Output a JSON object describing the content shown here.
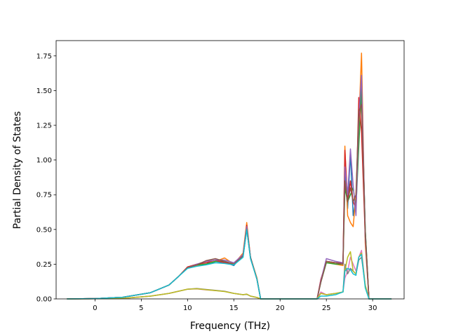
{
  "chart_data": {
    "type": "line",
    "xlabel": "Frequency (THz)",
    "ylabel": "Partial Density of States",
    "xlim": [
      -4.2,
      33.4
    ],
    "ylim": [
      0,
      1.86
    ],
    "xticks": [
      0,
      5,
      10,
      15,
      20,
      25,
      30
    ],
    "yticks": [
      0.0,
      0.25,
      0.5,
      0.75,
      1.0,
      1.25,
      1.5,
      1.75
    ],
    "ytick_labels": [
      "0.00",
      "0.25",
      "0.50",
      "0.75",
      "1.00",
      "1.25",
      "1.50",
      "1.75"
    ],
    "grid": false,
    "legend": "none",
    "series": [
      {
        "color": "#1f77b4",
        "points": [
          [
            -3,
            0
          ],
          [
            0,
            0.002
          ],
          [
            3,
            0.012
          ],
          [
            6,
            0.045
          ],
          [
            8,
            0.1
          ],
          [
            9,
            0.16
          ],
          [
            10,
            0.225
          ],
          [
            11,
            0.25
          ],
          [
            12,
            0.26
          ],
          [
            13,
            0.26
          ],
          [
            14,
            0.265
          ],
          [
            15,
            0.24
          ],
          [
            16,
            0.32
          ],
          [
            16.4,
            0.52
          ],
          [
            16.8,
            0.3
          ],
          [
            17.5,
            0.14
          ],
          [
            17.9,
            0
          ],
          [
            24,
            0
          ],
          [
            24.4,
            0.12
          ],
          [
            25,
            0.27
          ],
          [
            26,
            0.26
          ],
          [
            26.8,
            0.25
          ],
          [
            27,
            0.9
          ],
          [
            27.3,
            0.65
          ],
          [
            27.6,
            1.05
          ],
          [
            27.9,
            0.6
          ],
          [
            28.2,
            0.72
          ],
          [
            28.5,
            1.2
          ],
          [
            28.8,
            1.55
          ],
          [
            29.2,
            0.5
          ],
          [
            29.6,
            0
          ],
          [
            32,
            0
          ]
        ]
      },
      {
        "color": "#ff7f0e",
        "points": [
          [
            -3,
            0
          ],
          [
            0,
            0.002
          ],
          [
            3,
            0.012
          ],
          [
            6,
            0.045
          ],
          [
            8,
            0.1
          ],
          [
            9,
            0.16
          ],
          [
            10,
            0.23
          ],
          [
            11,
            0.24
          ],
          [
            12,
            0.25
          ],
          [
            13,
            0.27
          ],
          [
            14,
            0.295
          ],
          [
            15,
            0.25
          ],
          [
            16,
            0.33
          ],
          [
            16.4,
            0.55
          ],
          [
            16.8,
            0.3
          ],
          [
            17.5,
            0.15
          ],
          [
            17.9,
            0
          ],
          [
            24,
            0
          ],
          [
            24.4,
            0.13
          ],
          [
            25,
            0.27
          ],
          [
            26,
            0.25
          ],
          [
            26.8,
            0.24
          ],
          [
            27,
            1.1
          ],
          [
            27.3,
            0.6
          ],
          [
            27.6,
            0.55
          ],
          [
            27.9,
            0.52
          ],
          [
            28.2,
            0.75
          ],
          [
            28.5,
            1.25
          ],
          [
            28.8,
            1.77
          ],
          [
            29.2,
            0.4
          ],
          [
            29.6,
            0
          ],
          [
            32,
            0
          ]
        ]
      },
      {
        "color": "#2ca02c",
        "points": [
          [
            -3,
            0
          ],
          [
            0,
            0.002
          ],
          [
            3,
            0.012
          ],
          [
            6,
            0.045
          ],
          [
            8,
            0.1
          ],
          [
            9,
            0.16
          ],
          [
            10,
            0.225
          ],
          [
            11,
            0.245
          ],
          [
            12,
            0.25
          ],
          [
            13,
            0.27
          ],
          [
            14,
            0.27
          ],
          [
            15,
            0.25
          ],
          [
            16,
            0.31
          ],
          [
            16.4,
            0.5
          ],
          [
            16.8,
            0.3
          ],
          [
            17.5,
            0.14
          ],
          [
            17.9,
            0
          ],
          [
            24,
            0
          ],
          [
            24.4,
            0.12
          ],
          [
            25,
            0.26
          ],
          [
            26,
            0.25
          ],
          [
            26.8,
            0.25
          ],
          [
            27,
            0.8
          ],
          [
            27.3,
            0.7
          ],
          [
            27.6,
            0.75
          ],
          [
            27.9,
            0.8
          ],
          [
            28.2,
            0.65
          ],
          [
            28.5,
            1.1
          ],
          [
            28.8,
            1.5
          ],
          [
            29.2,
            0.5
          ],
          [
            29.6,
            0
          ],
          [
            32,
            0
          ]
        ]
      },
      {
        "color": "#d62728",
        "points": [
          [
            -3,
            0
          ],
          [
            0,
            0.002
          ],
          [
            3,
            0.012
          ],
          [
            6,
            0.045
          ],
          [
            8,
            0.1
          ],
          [
            9,
            0.16
          ],
          [
            10,
            0.23
          ],
          [
            11,
            0.25
          ],
          [
            12,
            0.26
          ],
          [
            13,
            0.28
          ],
          [
            14,
            0.26
          ],
          [
            15,
            0.25
          ],
          [
            16,
            0.32
          ],
          [
            16.4,
            0.53
          ],
          [
            16.8,
            0.3
          ],
          [
            17.5,
            0.14
          ],
          [
            17.9,
            0
          ],
          [
            24,
            0
          ],
          [
            24.4,
            0.14
          ],
          [
            25,
            0.27
          ],
          [
            26,
            0.26
          ],
          [
            26.8,
            0.26
          ],
          [
            27,
            1.07
          ],
          [
            27.3,
            0.7
          ],
          [
            27.6,
            0.85
          ],
          [
            27.9,
            0.7
          ],
          [
            28.2,
            0.65
          ],
          [
            28.5,
            1.45
          ],
          [
            28.8,
            1.2
          ],
          [
            29.2,
            0.45
          ],
          [
            29.6,
            0
          ],
          [
            32,
            0
          ]
        ]
      },
      {
        "color": "#9467bd",
        "points": [
          [
            -3,
            0
          ],
          [
            0,
            0.002
          ],
          [
            3,
            0.012
          ],
          [
            6,
            0.045
          ],
          [
            8,
            0.1
          ],
          [
            9,
            0.16
          ],
          [
            10,
            0.225
          ],
          [
            11,
            0.25
          ],
          [
            12,
            0.27
          ],
          [
            13,
            0.28
          ],
          [
            14,
            0.28
          ],
          [
            15,
            0.26
          ],
          [
            16,
            0.32
          ],
          [
            16.4,
            0.52
          ],
          [
            16.8,
            0.3
          ],
          [
            17.5,
            0.14
          ],
          [
            17.9,
            0
          ],
          [
            24,
            0
          ],
          [
            24.4,
            0.13
          ],
          [
            25,
            0.29
          ],
          [
            26,
            0.27
          ],
          [
            26.8,
            0.26
          ],
          [
            27,
            0.95
          ],
          [
            27.3,
            0.75
          ],
          [
            27.6,
            1.08
          ],
          [
            27.9,
            0.82
          ],
          [
            28.2,
            0.6
          ],
          [
            28.5,
            1.3
          ],
          [
            28.8,
            1.61
          ],
          [
            29.2,
            0.45
          ],
          [
            29.6,
            0
          ],
          [
            32,
            0
          ]
        ]
      },
      {
        "color": "#8c564b",
        "points": [
          [
            -3,
            0
          ],
          [
            0,
            0.002
          ],
          [
            3,
            0.012
          ],
          [
            6,
            0.045
          ],
          [
            8,
            0.1
          ],
          [
            9,
            0.16
          ],
          [
            10,
            0.225
          ],
          [
            11,
            0.245
          ],
          [
            12,
            0.275
          ],
          [
            13,
            0.29
          ],
          [
            14,
            0.27
          ],
          [
            15,
            0.25
          ],
          [
            16,
            0.31
          ],
          [
            16.4,
            0.5
          ],
          [
            16.8,
            0.3
          ],
          [
            17.5,
            0.14
          ],
          [
            17.9,
            0
          ],
          [
            24,
            0
          ],
          [
            24.4,
            0.12
          ],
          [
            25,
            0.27
          ],
          [
            26,
            0.26
          ],
          [
            26.8,
            0.25
          ],
          [
            27,
            0.85
          ],
          [
            27.3,
            0.7
          ],
          [
            27.6,
            0.8
          ],
          [
            27.9,
            0.7
          ],
          [
            28.2,
            0.75
          ],
          [
            28.5,
            1.35
          ],
          [
            28.8,
            1.4
          ],
          [
            29.2,
            0.48
          ],
          [
            29.6,
            0
          ],
          [
            32,
            0
          ]
        ]
      },
      {
        "color": "#e377c2",
        "points": [
          [
            -3,
            0
          ],
          [
            0,
            0.001
          ],
          [
            3,
            0.004
          ],
          [
            6,
            0.02
          ],
          [
            8,
            0.04
          ],
          [
            9,
            0.055
          ],
          [
            10,
            0.07
          ],
          [
            11,
            0.072
          ],
          [
            12,
            0.065
          ],
          [
            13,
            0.06
          ],
          [
            14,
            0.055
          ],
          [
            15,
            0.04
          ],
          [
            16,
            0.03
          ],
          [
            16.4,
            0.035
          ],
          [
            16.8,
            0.02
          ],
          [
            17.5,
            0.01
          ],
          [
            17.9,
            0
          ],
          [
            24,
            0
          ],
          [
            24.4,
            0.05
          ],
          [
            25,
            0.03
          ],
          [
            26,
            0.04
          ],
          [
            26.8,
            0.05
          ],
          [
            27,
            0.15
          ],
          [
            27.3,
            0.2
          ],
          [
            27.6,
            0.3
          ],
          [
            27.9,
            0.25
          ],
          [
            28.2,
            0.2
          ],
          [
            28.5,
            0.3
          ],
          [
            28.8,
            0.35
          ],
          [
            29.2,
            0.1
          ],
          [
            29.6,
            0
          ],
          [
            32,
            0
          ]
        ]
      },
      {
        "color": "#7f7f7f",
        "points": [
          [
            -3,
            0
          ],
          [
            0,
            0.001
          ],
          [
            3,
            0.004
          ],
          [
            6,
            0.02
          ],
          [
            8,
            0.04
          ],
          [
            9,
            0.055
          ],
          [
            10,
            0.07
          ],
          [
            11,
            0.075
          ],
          [
            12,
            0.068
          ],
          [
            13,
            0.062
          ],
          [
            14,
            0.055
          ],
          [
            15,
            0.04
          ],
          [
            16,
            0.03
          ],
          [
            16.4,
            0.033
          ],
          [
            16.8,
            0.02
          ],
          [
            17.5,
            0.01
          ],
          [
            17.9,
            0
          ],
          [
            24,
            0
          ],
          [
            24.4,
            0.04
          ],
          [
            25,
            0.03
          ],
          [
            26,
            0.04
          ],
          [
            26.8,
            0.05
          ],
          [
            27,
            0.25
          ],
          [
            27.3,
            0.18
          ],
          [
            27.6,
            0.22
          ],
          [
            27.9,
            0.2
          ],
          [
            28.2,
            0.18
          ],
          [
            28.5,
            0.28
          ],
          [
            28.8,
            0.3
          ],
          [
            29.2,
            0.1
          ],
          [
            29.6,
            0
          ],
          [
            32,
            0
          ]
        ]
      },
      {
        "color": "#bcbd22",
        "points": [
          [
            -3,
            0
          ],
          [
            0,
            0.001
          ],
          [
            3,
            0.004
          ],
          [
            6,
            0.02
          ],
          [
            8,
            0.04
          ],
          [
            9,
            0.055
          ],
          [
            10,
            0.07
          ],
          [
            11,
            0.073
          ],
          [
            12,
            0.066
          ],
          [
            13,
            0.06
          ],
          [
            14,
            0.053
          ],
          [
            15,
            0.04
          ],
          [
            16,
            0.03
          ],
          [
            16.4,
            0.035
          ],
          [
            16.8,
            0.02
          ],
          [
            17.5,
            0.01
          ],
          [
            17.9,
            0
          ],
          [
            24,
            0
          ],
          [
            24.4,
            0.04
          ],
          [
            25,
            0.03
          ],
          [
            26,
            0.04
          ],
          [
            26.8,
            0.05
          ],
          [
            27,
            0.2
          ],
          [
            27.3,
            0.3
          ],
          [
            27.6,
            0.34
          ],
          [
            27.9,
            0.2
          ],
          [
            28.2,
            0.18
          ],
          [
            28.5,
            0.3
          ],
          [
            28.8,
            0.33
          ],
          [
            29.2,
            0.1
          ],
          [
            29.6,
            0
          ],
          [
            32,
            0
          ]
        ]
      },
      {
        "color": "#17becf",
        "points": [
          [
            -3,
            0
          ],
          [
            0,
            0.002
          ],
          [
            3,
            0.012
          ],
          [
            6,
            0.045
          ],
          [
            8,
            0.1
          ],
          [
            9,
            0.16
          ],
          [
            10,
            0.22
          ],
          [
            11,
            0.235
          ],
          [
            12,
            0.245
          ],
          [
            13,
            0.26
          ],
          [
            14,
            0.255
          ],
          [
            15,
            0.245
          ],
          [
            16,
            0.3
          ],
          [
            16.4,
            0.5
          ],
          [
            16.8,
            0.29
          ],
          [
            17.5,
            0.14
          ],
          [
            17.9,
            0
          ],
          [
            24,
            0
          ],
          [
            24.4,
            0.02
          ],
          [
            25,
            0.02
          ],
          [
            26,
            0.03
          ],
          [
            26.8,
            0.05
          ],
          [
            27,
            0.2
          ],
          [
            27.3,
            0.22
          ],
          [
            27.6,
            0.21
          ],
          [
            27.9,
            0.18
          ],
          [
            28.2,
            0.17
          ],
          [
            28.5,
            0.3
          ],
          [
            28.8,
            0.32
          ],
          [
            29.2,
            0.08
          ],
          [
            29.6,
            0
          ],
          [
            32,
            0
          ]
        ]
      }
    ]
  }
}
